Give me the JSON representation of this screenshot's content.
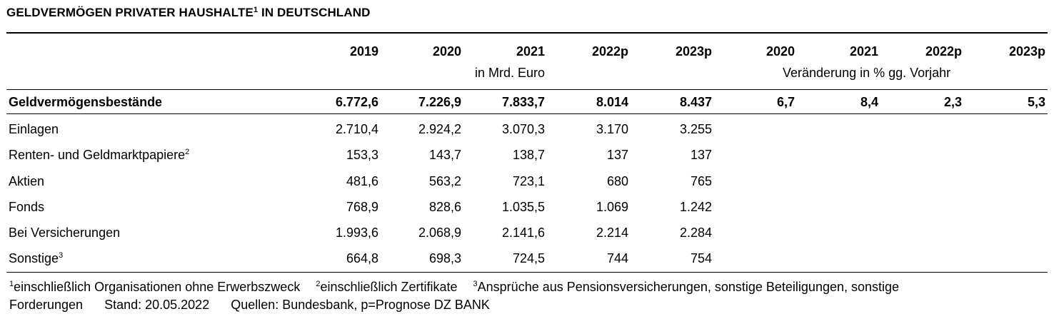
{
  "title": {
    "text": "GELDVERMÖGEN PRIVATER HAUSHALTE",
    "sup": "1",
    "rest": " IN DEUTSCHLAND"
  },
  "header": {
    "years": [
      "2019",
      "2020",
      "2021",
      "2022p",
      "2023p"
    ],
    "change_years": [
      "2020",
      "2021",
      "2022p",
      "2023p"
    ],
    "unit_left": "in Mrd. Euro",
    "unit_right": "Veränderung in % gg. Vorjahr"
  },
  "total": {
    "label": "Geldvermögensbestände",
    "values": [
      "6.772,6",
      "7.226,9",
      "7.833,7",
      "8.014",
      "8.437"
    ],
    "changes": [
      "6,7",
      "8,4",
      "2,3",
      "5,3"
    ]
  },
  "rows": [
    {
      "label": "Einlagen",
      "sup": "",
      "values": [
        "2.710,4",
        "2.924,2",
        "3.070,3",
        "3.170",
        "3.255"
      ]
    },
    {
      "label": "Renten- und Geldmarktpapiere",
      "sup": "2",
      "values": [
        "153,3",
        "143,7",
        "138,7",
        "137",
        "137"
      ]
    },
    {
      "label": "Aktien",
      "sup": "",
      "values": [
        "481,6",
        "563,2",
        "723,1",
        "680",
        "765"
      ]
    },
    {
      "label": "Fonds",
      "sup": "",
      "values": [
        "768,9",
        "828,6",
        "1.035,5",
        "1.069",
        "1.242"
      ]
    },
    {
      "label": "Bei Versicherungen",
      "sup": "",
      "values": [
        "1.993,6",
        "2.068,9",
        "2.141,6",
        "2.214",
        "2.284"
      ]
    },
    {
      "label": "Sonstige",
      "sup": "3",
      "values": [
        "664,8",
        "698,3",
        "724,5",
        "744",
        "754"
      ]
    }
  ],
  "footnotes": {
    "n1_sup": "1",
    "n1": "einschließlich Organisationen ohne Erwerbszweck",
    "n2_sup": "2",
    "n2": "einschließlich Zertifikate",
    "n3_sup": "3",
    "n3": "Ansprüche aus Pensionsversicherungen, sonstige Beteiligungen, sonstige",
    "line2a": "Forderungen",
    "line2b": "Stand: 20.05.2022",
    "line2c": "Quellen: Bundesbank, p=Prognose DZ BANK"
  }
}
